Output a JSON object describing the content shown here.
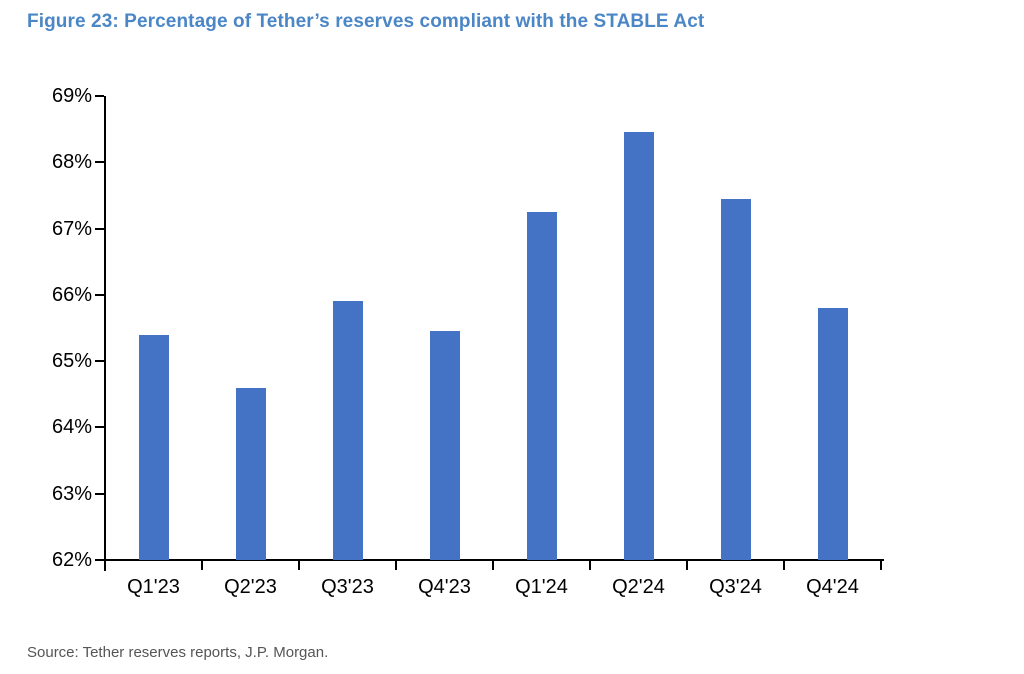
{
  "page": {
    "title": "Figure 23: Percentage of Tether’s reserves compliant with the STABLE Act",
    "source": "Source: Tether reserves reports, J.P. Morgan."
  },
  "chart_data": {
    "type": "bar",
    "title": "Figure 23: Percentage of Tether’s reserves compliant with the STABLE Act",
    "categories": [
      "Q1'23",
      "Q2'23",
      "Q3'23",
      "Q4'23",
      "Q1'24",
      "Q2'24",
      "Q3'24",
      "Q4'24"
    ],
    "values": [
      65.4,
      64.6,
      65.9,
      65.45,
      67.25,
      68.45,
      67.45,
      65.8
    ],
    "xlabel": "",
    "ylabel": "",
    "ylim": [
      62,
      69
    ],
    "y_tick_step": 1,
    "y_tick_suffix": "%",
    "grid": false,
    "legend_position": "none",
    "source": "Source: Tether reserves reports, J.P. Morgan."
  },
  "colors": {
    "title_text": "#4B86C6",
    "bar_fill": "#4472C4",
    "axis": "#000000",
    "tick_label_text": "#000000",
    "source_text": "#555555"
  }
}
